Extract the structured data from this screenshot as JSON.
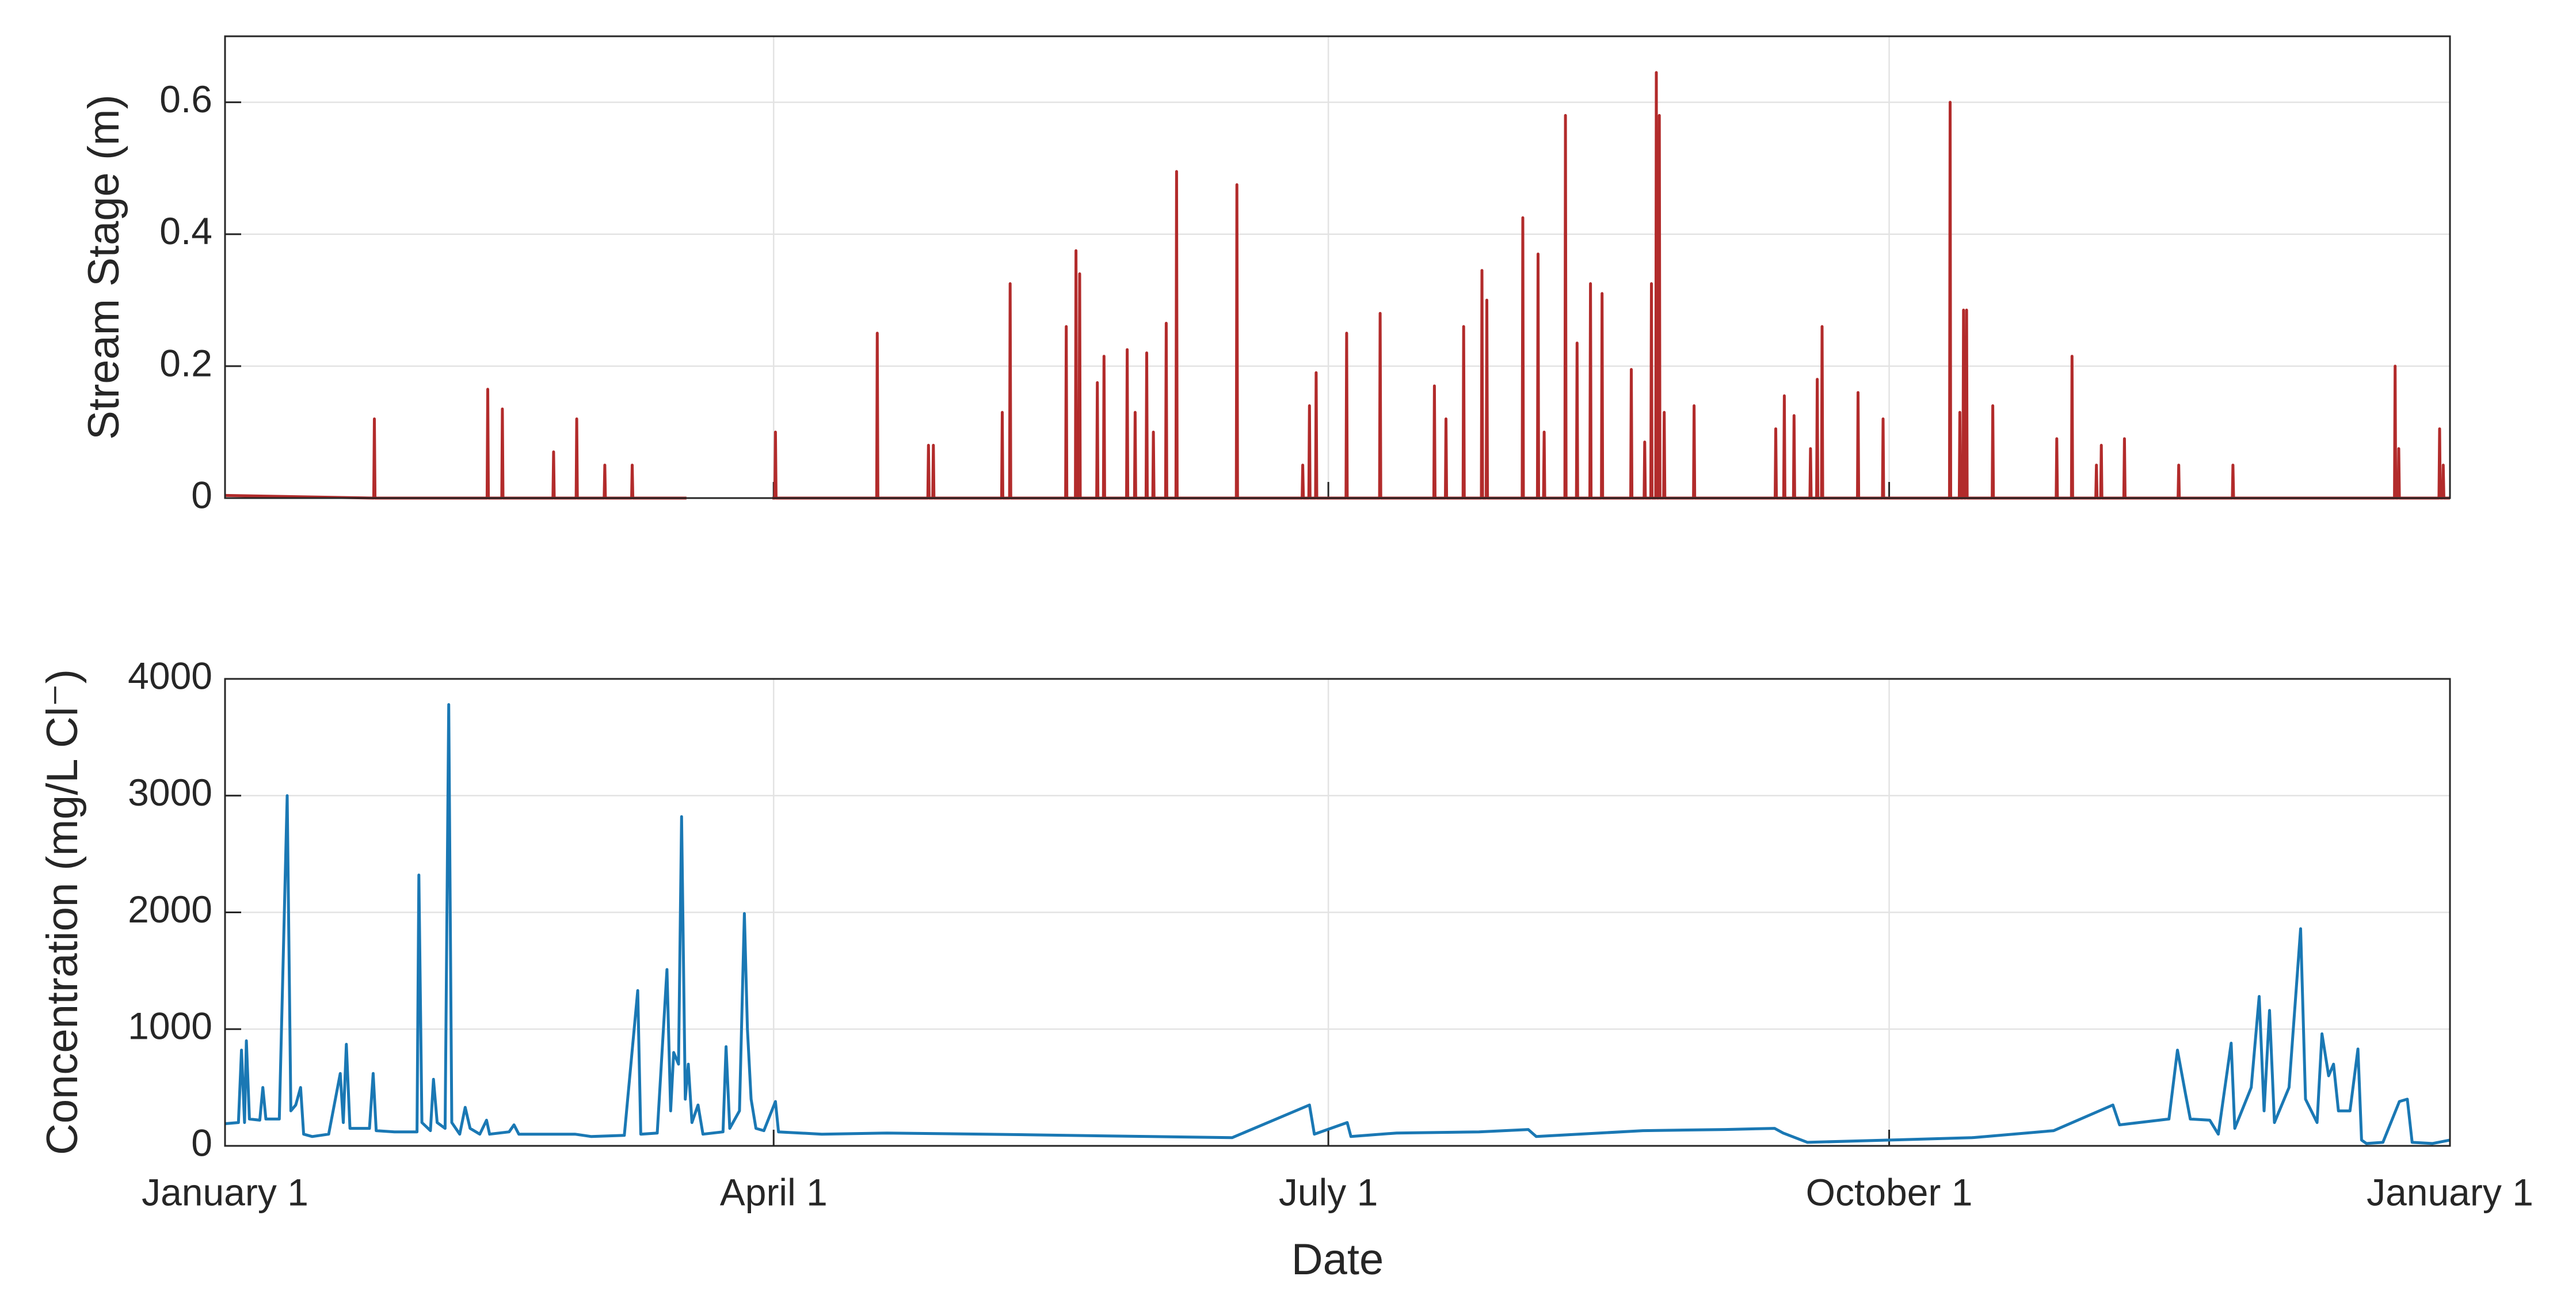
{
  "chart_data": [
    {
      "type": "line",
      "ylabel": "Stream Stage (m)",
      "color": "#b22b2b",
      "xlim": [
        0,
        365
      ],
      "ylim": [
        0,
        0.7
      ],
      "xticks": [
        0,
        90,
        181,
        273,
        365
      ],
      "yticks": [
        0,
        0.2,
        0.4,
        0.6
      ],
      "grid": true,
      "x": [
        0,
        24.4,
        24.5,
        24.6,
        43,
        43.1,
        43.2,
        45.4,
        45.5,
        45.6,
        53.8,
        53.9,
        54,
        57.6,
        57.7,
        57.8,
        62.2,
        62.3,
        62.4,
        66.7,
        66.8,
        66.9,
        75.7,
        null,
        89.8,
        90.2,
        90.3,
        90.4,
        106.9,
        107,
        107.1,
        115.3,
        115.4,
        115.5,
        116.1,
        116.2,
        116.3,
        127.4,
        127.5,
        127.6,
        128.7,
        128.8,
        128.9,
        137.9,
        138,
        138.1,
        139.5,
        139.6,
        139.7,
        140.1,
        140.2,
        140.3,
        143,
        143.1,
        143.2,
        144.1,
        144.2,
        144.3,
        147.9,
        148,
        148.1,
        149.2,
        149.3,
        149.4,
        151.1,
        151.2,
        151.3,
        152.2,
        152.3,
        152.4,
        154.3,
        154.4,
        154.5,
        156,
        156.1,
        156.2,
        165.9,
        166,
        166.1,
        176.7,
        176.8,
        176.9,
        177.8,
        177.9,
        178,
        178.9,
        179,
        179.1,
        183.9,
        184,
        184.1,
        189.4,
        189.5,
        189.6,
        198.3,
        198.4,
        198.5,
        200.2,
        200.3,
        200.4,
        203.1,
        203.2,
        203.3,
        206.1,
        206.2,
        206.3,
        206.9,
        207,
        207.1,
        212.8,
        212.9,
        213,
        215.3,
        215.4,
        215.5,
        216.3,
        216.4,
        216.5,
        219.8,
        219.9,
        220,
        221.7,
        221.8,
        221.9,
        223.9,
        224,
        224.1,
        225.8,
        225.9,
        226,
        230.6,
        230.7,
        230.8,
        232.8,
        232.9,
        233,
        233.9,
        234,
        234.1,
        234.7,
        234.8,
        234.9,
        235.2,
        235.3,
        235.4,
        236,
        236.1,
        236.2,
        240.9,
        241,
        241.1,
        254.3,
        254.4,
        254.5,
        255.7,
        255.8,
        255.9,
        257.3,
        257.4,
        257.5,
        260,
        260.1,
        260.2,
        261.1,
        261.2,
        261.3,
        261.9,
        262,
        262.1,
        267.8,
        267.9,
        268,
        271.9,
        272,
        272.1,
        282.9,
        283,
        283.1,
        284.5,
        284.6,
        284.7,
        285.1,
        285.2,
        285.3,
        285.6,
        285.7,
        285.8,
        289.9,
        290,
        290.1,
        300.4,
        300.5,
        300.6,
        302.9,
        303,
        303.1,
        306.9,
        307,
        307.1,
        307.7,
        307.8,
        307.9,
        311.5,
        311.6,
        311.7,
        320.4,
        320.5,
        320.6,
        329.3,
        329.4,
        329.5,
        355.9,
        356,
        356.1,
        356.5,
        356.6,
        356.7,
        363.2,
        363.3,
        363.4,
        363.8,
        363.9,
        364,
        365
      ],
      "values": [
        0.004,
        0,
        0.12,
        0,
        0,
        0.165,
        0,
        0,
        0.135,
        0,
        0,
        0.07,
        0,
        0,
        0.12,
        0,
        0,
        0.05,
        0,
        0,
        0.05,
        0,
        0,
        null,
        0,
        0,
        0.1,
        0,
        0,
        0.25,
        0,
        0,
        0.08,
        0,
        0,
        0.08,
        0,
        0,
        0.13,
        0,
        0,
        0.325,
        0,
        0,
        0.26,
        0,
        0,
        0.375,
        0,
        0,
        0.34,
        0,
        0,
        0.175,
        0,
        0,
        0.215,
        0,
        0,
        0.225,
        0,
        0,
        0.13,
        0,
        0,
        0.22,
        0,
        0,
        0.1,
        0,
        0,
        0.265,
        0,
        0,
        0.495,
        0,
        0,
        0.475,
        0,
        0,
        0.05,
        0,
        0,
        0.14,
        0,
        0,
        0.19,
        0,
        0,
        0.25,
        0,
        0,
        0.28,
        0,
        0,
        0.17,
        0,
        0,
        0.12,
        0,
        0,
        0.26,
        0,
        0,
        0.345,
        0,
        0,
        0.3,
        0,
        0,
        0.425,
        0,
        0,
        0.37,
        0,
        0,
        0.1,
        0,
        0,
        0.58,
        0,
        0,
        0.235,
        0,
        0,
        0.325,
        0,
        0,
        0.31,
        0,
        0,
        0.195,
        0,
        0,
        0.085,
        0,
        0,
        0.325,
        0,
        0,
        0.645,
        0,
        0,
        0.58,
        0,
        0,
        0.13,
        0,
        0,
        0.14,
        0,
        0,
        0.105,
        0,
        0,
        0.155,
        0,
        0,
        0.125,
        0,
        0,
        0.075,
        0,
        0,
        0.18,
        0,
        0,
        0.26,
        0,
        0,
        0.16,
        0,
        0,
        0.12,
        0,
        0,
        0.6,
        0,
        0,
        0.13,
        0,
        0,
        0.285,
        0,
        0,
        0.285,
        0,
        0,
        0.14,
        0,
        0,
        0.09,
        0,
        0,
        0.215,
        0,
        0,
        0.05,
        0,
        0,
        0.08,
        0,
        0,
        0.09,
        0,
        0,
        0.05,
        0,
        0,
        0.05,
        0,
        0,
        0.2,
        0,
        0,
        0.075,
        0,
        0,
        0.105,
        0,
        0,
        0.05,
        0,
        0
      ]
    },
    {
      "type": "line",
      "ylabel": "Concentration (mg/L Cl⁻)",
      "xlabel": "Date",
      "color": "#1a78b4",
      "xlim": [
        0,
        365
      ],
      "ylim": [
        0,
        4000
      ],
      "xticks": [
        {
          "value": 0,
          "label": "January 1"
        },
        {
          "value": 90,
          "label": "April 1"
        },
        {
          "value": 181,
          "label": "July 1"
        },
        {
          "value": 273,
          "label": "October 1"
        },
        {
          "value": 365,
          "label": "January 1"
        }
      ],
      "yticks": [
        0,
        1000,
        2000,
        3000,
        4000
      ],
      "grid": true,
      "x": [
        0,
        2.2,
        2.7,
        3.2,
        3.5,
        4.0,
        5.7,
        6.2,
        6.7,
        8.9,
        10.2,
        10.8,
        11.6,
        12.4,
        12.9,
        14.3,
        17.0,
        18.9,
        19.4,
        19.9,
        20.5,
        23.7,
        24.3,
        24.8,
        27.8,
        31.5,
        31.8,
        32.3,
        33.7,
        34.2,
        34.8,
        36.1,
        36.7,
        37.2,
        38.5,
        39.4,
        40.2,
        41.8,
        42.9,
        43.4,
        46.6,
        47.4,
        48.2,
        57.4,
        60.1,
        65.5,
        67.7,
        68.2,
        70.9,
        72.5,
        73.1,
        73.6,
        74.4,
        74.9,
        75.5,
        76.0,
        76.6,
        77.6,
        78.4,
        81.7,
        82.2,
        82.8,
        84.4,
        85.2,
        85.7,
        86.3,
        87.1,
        88.4,
        90.3,
        90.8,
        97.9,
        108.6,
        124.8,
        151.8,
        165.2,
        177.9,
        178.7,
        184.1,
        184.7,
        192.2,
        205.7,
        213.8,
        215.1,
        232.6,
        246.1,
        254.2,
        255.6,
        259.6,
        273.1,
        286.6,
        300.0,
        309.7,
        310.8,
        318.9,
        320.3,
        321.6,
        322.4,
        325.6,
        327.0,
        329.1,
        329.7,
        332.4,
        333.7,
        334.5,
        335.4,
        336.2,
        338.6,
        340.5,
        341.3,
        343.2,
        344.0,
        345.1,
        345.9,
        346.7,
        348.6,
        349.9,
        350.5,
        351.3,
        354.0,
        356.7,
        358.0,
        358.8,
        362.1,
        365
      ],
      "values": [
        190,
        200,
        820,
        200,
        900,
        230,
        220,
        500,
        230,
        230,
        3000,
        300,
        350,
        500,
        100,
        80,
        100,
        620,
        200,
        870,
        150,
        150,
        620,
        130,
        120,
        120,
        2320,
        200,
        130,
        570,
        200,
        150,
        3780,
        200,
        100,
        330,
        150,
        100,
        220,
        100,
        120,
        180,
        100,
        100,
        80,
        90,
        1330,
        100,
        110,
        1510,
        300,
        800,
        700,
        2820,
        400,
        700,
        200,
        350,
        100,
        120,
        850,
        150,
        300,
        1990,
        1000,
        400,
        150,
        130,
        380,
        120,
        100,
        110,
        100,
        80,
        70,
        350,
        100,
        200,
        80,
        110,
        120,
        140,
        80,
        130,
        140,
        150,
        110,
        30,
        50,
        70,
        130,
        350,
        180,
        230,
        820,
        450,
        230,
        220,
        100,
        880,
        150,
        500,
        1280,
        300,
        1160,
        200,
        500,
        1860,
        400,
        200,
        960,
        600,
        700,
        300,
        300,
        830,
        50,
        20,
        30,
        380,
        400,
        30,
        20,
        50
      ]
    }
  ]
}
